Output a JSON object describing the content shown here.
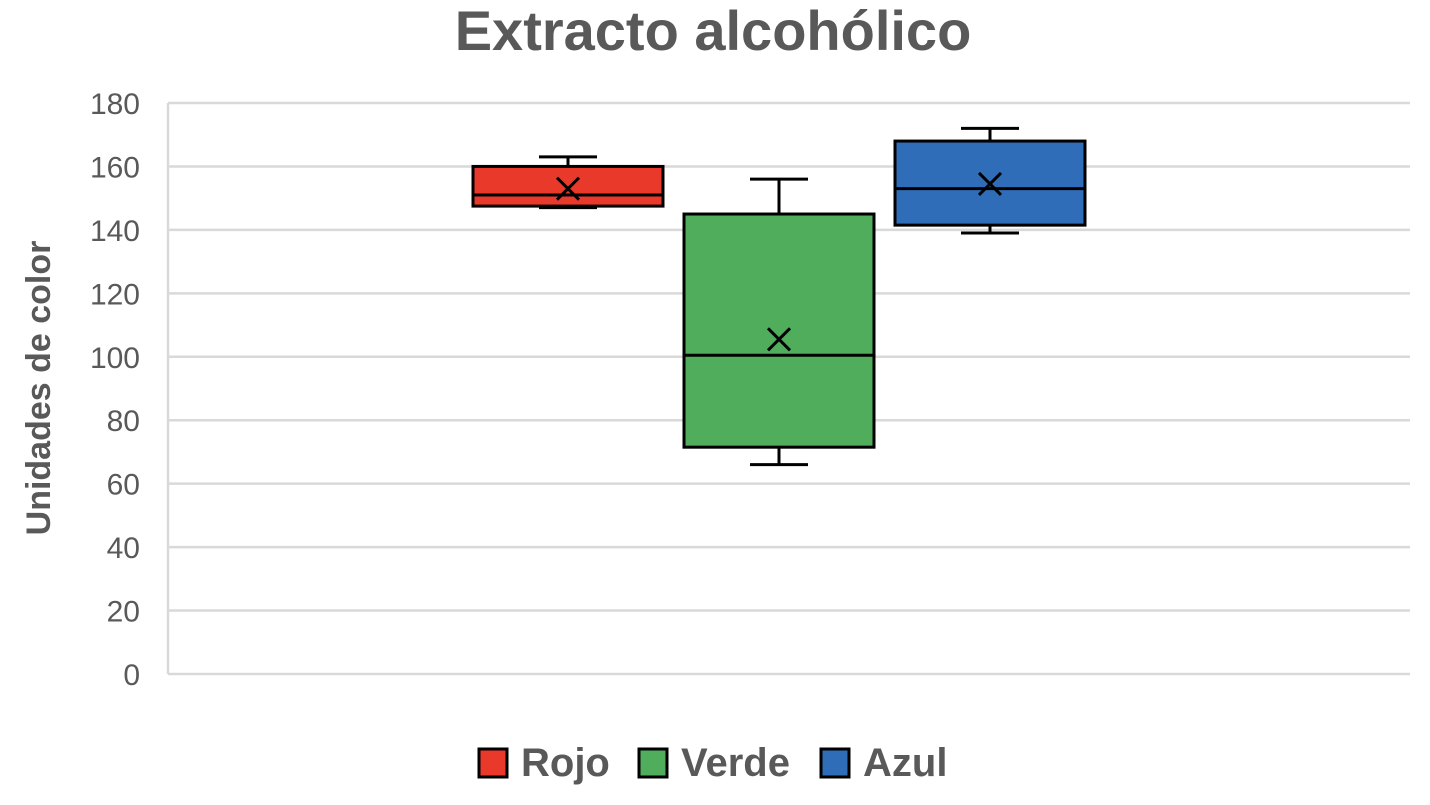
{
  "chart_data": {
    "type": "boxplot",
    "title": "Extracto alcohólico",
    "xlabel": "",
    "ylabel": "Unidades de color",
    "ylim": [
      0,
      180
    ],
    "yticks": [
      0,
      20,
      40,
      60,
      80,
      100,
      120,
      140,
      160,
      180
    ],
    "grid": true,
    "legend_position": "bottom",
    "series": [
      {
        "name": "Rojo",
        "color": "#E8392A",
        "min": 147,
        "q1": 147.5,
        "median": 151,
        "q3": 160,
        "max": 163,
        "mean": 153
      },
      {
        "name": "Verde",
        "color": "#4FAD5B",
        "min": 66,
        "q1": 71.5,
        "median": 100.5,
        "q3": 145,
        "max": 156,
        "mean": 105.5
      },
      {
        "name": "Azul",
        "color": "#2F6DB8",
        "min": 139,
        "q1": 141.5,
        "median": 153,
        "q3": 168,
        "max": 172,
        "mean": 154.5
      }
    ]
  }
}
